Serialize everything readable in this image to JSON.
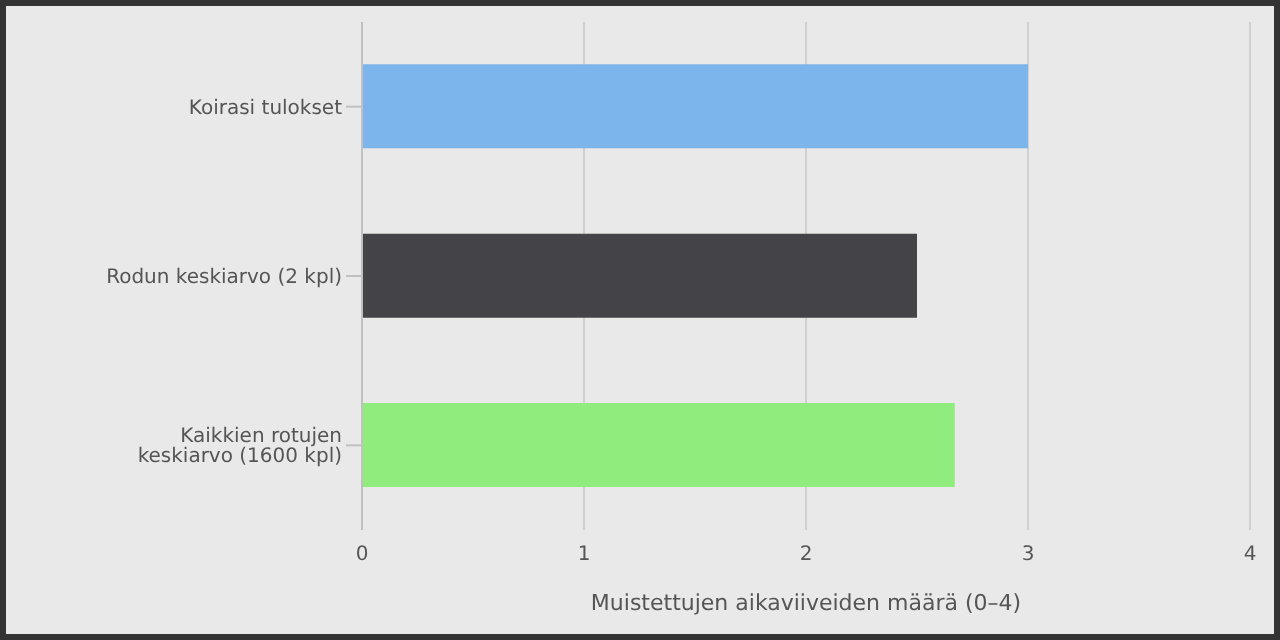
{
  "chart_data": {
    "type": "bar",
    "orientation": "horizontal",
    "categories": [
      "Koirasi tulokset",
      "Rodun keskiarvo (2 kpl)",
      "Kaikkien rotujen keskiarvo (1600 kpl)"
    ],
    "values": [
      3,
      2.5,
      2.67
    ],
    "colors": [
      "#7cb5ec",
      "#434348",
      "#90ed7d"
    ],
    "xlim": [
      0,
      4
    ],
    "xticks": [
      0,
      1,
      2,
      3,
      4
    ],
    "xlabel": "Muistettujen aikaviiveiden määrä (0–4)",
    "grid": "x"
  }
}
